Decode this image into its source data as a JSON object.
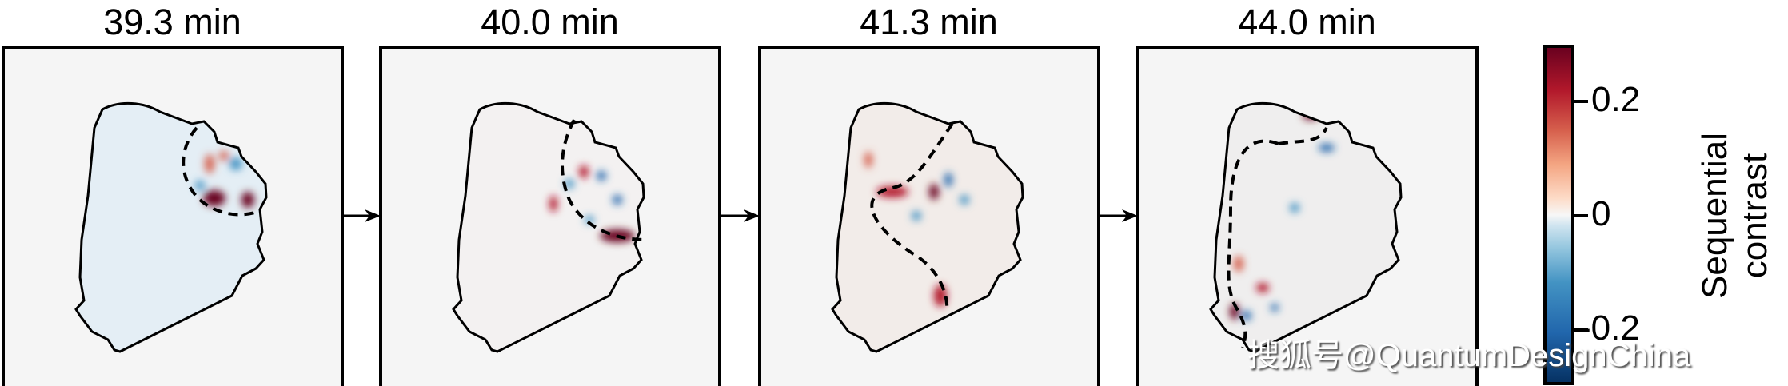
{
  "panels": [
    {
      "title": "39.3 min"
    },
    {
      "title": "40.0 min"
    },
    {
      "title": "41.3 min"
    },
    {
      "title": "44.0 min"
    }
  ],
  "colorbar": {
    "label_line1": "Sequential",
    "label_line2": "contrast",
    "ticks": [
      "0.2",
      "0",
      "-0.2"
    ],
    "range": [
      -0.28,
      0.28
    ],
    "colormap": "RdBu_r",
    "colors": {
      "max": "#67001f",
      "mid": "#f7f7f7",
      "min": "#053061"
    }
  },
  "watermark": "搜狐号@QuantumDesignChina"
}
